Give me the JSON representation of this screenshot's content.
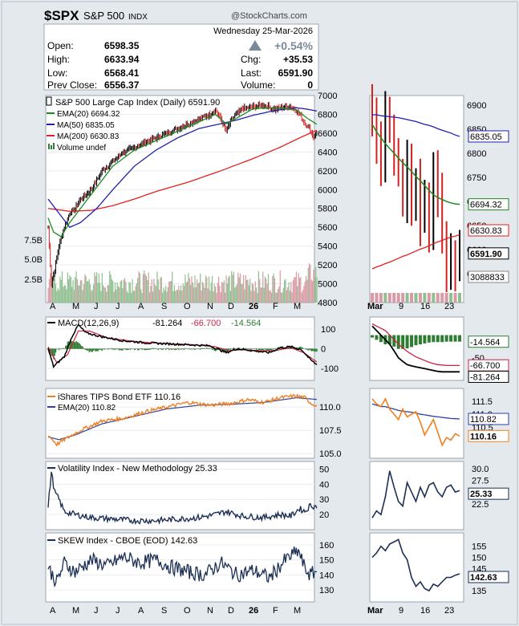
{
  "header": {
    "ticker": "$SPX",
    "name": "S&P 500",
    "exchange": "INDX",
    "source": "@StockCharts.com"
  },
  "quote": {
    "date": "Wednesday  25-Mar-2026",
    "open_label": "Open:",
    "open": "6598.35",
    "high_label": "High:",
    "high": "6633.94",
    "low_label": "Low:",
    "low": "6568.41",
    "prev_label": "Prev Close:",
    "prev": "6556.37",
    "pct": "+0.54%",
    "chg_label": "Chg:",
    "chg": "+35.53",
    "last_label": "Last:",
    "last": "6591.90",
    "vol_label": "Volume:",
    "vol": "0"
  },
  "colors": {
    "background": "#e4e9ee",
    "panel": "#ffffff",
    "up": "#000000",
    "down": "#d42020",
    "ema20": "#1e8c1e",
    "ma50": "#2020b0",
    "ma200": "#e02020",
    "volume_up": "#8fbf8f",
    "volume_down": "#d99aa5",
    "macd": "#000000",
    "signal": "#cc2244",
    "hist": "#2e7d32",
    "tip": "#f07f1e",
    "tip_ema": "#3040a0",
    "vix": "#1c2f55",
    "skew": "#1c2f55"
  },
  "x_labels_main": [
    "A",
    "M",
    "J",
    "J",
    "A",
    "S",
    "O",
    "N",
    "D",
    "26",
    "F",
    "M"
  ],
  "x_labels_zoom": [
    "Mar",
    "9",
    "16",
    "23"
  ],
  "price_panel": {
    "legend": {
      "title": "S&P 500 Large Cap Index (Daily) 6591.90",
      "ema": "EMA(20) 6694.32",
      "ma50": "MA(50) 6835.05",
      "ma200": "MA(200) 6630.83",
      "volume": "Volume undef"
    },
    "y_ticks": [
      "7000",
      "6800",
      "6600",
      "6400",
      "6200",
      "6000",
      "5800",
      "5600",
      "5400",
      "5200",
      "5000",
      "4800"
    ],
    "vol_ticks": [
      "7.5B",
      "5.0B",
      "2.5B"
    ],
    "zoom_ticks": [
      "6900",
      "6850",
      "6800",
      "6750",
      "6700",
      "6650",
      "6600",
      "6550"
    ],
    "zoom_labels": {
      "ma50": "6835.05",
      "ema": "6694.32",
      "ma200": "6630.83",
      "last": "6591.90",
      "volume": "3088833"
    }
  },
  "macd_panel": {
    "legend_name": "MACD(12,26,9)",
    "macd": "-81.264",
    "signal": "-66.700",
    "hist": "-14.564",
    "y_ticks": [
      "100",
      "0",
      "-100"
    ],
    "zoom_ticks": [
      "-50"
    ]
  },
  "tip_panel": {
    "legend": "iShares TIPS Bond ETF 110.16",
    "ema": "EMA(20) 110.82",
    "y_ticks": [
      "110.0",
      "107.5",
      "105.0"
    ],
    "zoom_ticks": [
      "111.5",
      "111.0",
      "110.5"
    ],
    "zoom_labels": {
      "ema": "110.82",
      "last": "110.16"
    }
  },
  "vix_panel": {
    "legend": "Volatility Index - New Methodology 25.33",
    "y_ticks": [
      "50",
      "40",
      "30",
      "20"
    ],
    "zoom_ticks": [
      "30.0",
      "27.5",
      "22.5"
    ],
    "zoom_last": "25.33"
  },
  "skew_panel": {
    "legend": "SKEW Index - CBOE (EOD) 142.63",
    "y_ticks": [
      "160",
      "150",
      "140",
      "130"
    ],
    "zoom_ticks": [
      "155",
      "150",
      "145",
      "135"
    ],
    "zoom_last": "142.63"
  },
  "chart_data": {
    "type": "line",
    "title": "$SPX S&P 500 INDX",
    "x_start": "2025-04-01",
    "x_end": "2026-03-25",
    "price": {
      "ylim": [
        4800,
        7000
      ],
      "close_anchors": [
        [
          0,
          5600
        ],
        [
          3,
          5000
        ],
        [
          6,
          5150
        ],
        [
          10,
          5400
        ],
        [
          15,
          5600
        ],
        [
          20,
          5750
        ],
        [
          25,
          5800
        ],
        [
          30,
          5900
        ],
        [
          40,
          6000
        ],
        [
          50,
          6200
        ],
        [
          60,
          6300
        ],
        [
          70,
          6400
        ],
        [
          80,
          6450
        ],
        [
          90,
          6500
        ],
        [
          100,
          6550
        ],
        [
          110,
          6600
        ],
        [
          120,
          6650
        ],
        [
          130,
          6700
        ],
        [
          140,
          6750
        ],
        [
          150,
          6800
        ],
        [
          155,
          6850
        ],
        [
          160,
          6750
        ],
        [
          165,
          6620
        ],
        [
          170,
          6750
        ],
        [
          175,
          6800
        ],
        [
          180,
          6860
        ],
        [
          190,
          6880
        ],
        [
          200,
          6900
        ],
        [
          210,
          6850
        ],
        [
          215,
          6870
        ],
        [
          225,
          6880
        ],
        [
          230,
          6840
        ],
        [
          234,
          6780
        ],
        [
          238,
          6700
        ],
        [
          242,
          6660
        ],
        [
          246,
          6560
        ],
        [
          249,
          6592
        ]
      ],
      "ema20_anchors": [
        [
          0,
          5700
        ],
        [
          5,
          5550
        ],
        [
          12,
          5500
        ],
        [
          20,
          5650
        ],
        [
          40,
          5950
        ],
        [
          60,
          6250
        ],
        [
          80,
          6420
        ],
        [
          100,
          6520
        ],
        [
          120,
          6620
        ],
        [
          140,
          6720
        ],
        [
          155,
          6800
        ],
        [
          165,
          6700
        ],
        [
          175,
          6760
        ],
        [
          190,
          6860
        ],
        [
          210,
          6870
        ],
        [
          230,
          6850
        ],
        [
          240,
          6760
        ],
        [
          249,
          6694
        ]
      ],
      "ma50_anchors": [
        [
          0,
          5900
        ],
        [
          10,
          5750
        ],
        [
          20,
          5600
        ],
        [
          30,
          5650
        ],
        [
          45,
          5800
        ],
        [
          60,
          6000
        ],
        [
          80,
          6250
        ],
        [
          100,
          6420
        ],
        [
          120,
          6550
        ],
        [
          140,
          6650
        ],
        [
          160,
          6700
        ],
        [
          175,
          6740
        ],
        [
          190,
          6790
        ],
        [
          210,
          6840
        ],
        [
          230,
          6870
        ],
        [
          240,
          6855
        ],
        [
          249,
          6835
        ]
      ],
      "ma200_anchors": [
        [
          0,
          5800
        ],
        [
          20,
          5770
        ],
        [
          40,
          5780
        ],
        [
          60,
          5830
        ],
        [
          80,
          5900
        ],
        [
          100,
          5980
        ],
        [
          130,
          6080
        ],
        [
          160,
          6200
        ],
        [
          190,
          6330
        ],
        [
          215,
          6450
        ],
        [
          235,
          6560
        ],
        [
          249,
          6631
        ]
      ],
      "volume_base_billions": 2.5
    },
    "zoom": {
      "closes": [
        6870,
        6820,
        6780,
        6890,
        6850,
        6780,
        6760,
        6700,
        6780,
        6690,
        6740,
        6660,
        6700,
        6630,
        6760,
        6720,
        6620,
        6560,
        6580,
        6560,
        6592
      ],
      "ema20": [
        6860,
        6845,
        6832,
        6820,
        6810,
        6800,
        6790,
        6780,
        6772,
        6762,
        6752,
        6743,
        6733,
        6723,
        6714,
        6708,
        6704,
        6700,
        6697,
        6695,
        6694
      ],
      "ma50": [
        6880,
        6880,
        6878,
        6877,
        6876,
        6875,
        6874,
        6872,
        6870,
        6868,
        6866,
        6863,
        6860,
        6858,
        6855,
        6851,
        6848,
        6845,
        6842,
        6838,
        6835
      ],
      "ma200": [
        6560,
        6564,
        6567,
        6571,
        6574,
        6578,
        6582,
        6586,
        6589,
        6593,
        6597,
        6601,
        6604,
        6608,
        6612,
        6616,
        6619,
        6623,
        6626,
        6628,
        6631
      ]
    },
    "macd": {
      "ylim": [
        -160,
        160
      ],
      "macd_anchors": [
        [
          0,
          0
        ],
        [
          5,
          -90
        ],
        [
          15,
          -40
        ],
        [
          22,
          60
        ],
        [
          28,
          120
        ],
        [
          35,
          80
        ],
        [
          50,
          60
        ],
        [
          70,
          40
        ],
        [
          90,
          30
        ],
        [
          110,
          25
        ],
        [
          130,
          20
        ],
        [
          150,
          15
        ],
        [
          165,
          -20
        ],
        [
          175,
          0
        ],
        [
          190,
          -10
        ],
        [
          205,
          -20
        ],
        [
          215,
          5
        ],
        [
          225,
          10
        ],
        [
          235,
          -5
        ],
        [
          243,
          -55
        ],
        [
          249,
          -81
        ]
      ],
      "signal_anchors": [
        [
          0,
          10
        ],
        [
          8,
          -70
        ],
        [
          18,
          -30
        ],
        [
          28,
          90
        ],
        [
          38,
          90
        ],
        [
          55,
          55
        ],
        [
          75,
          40
        ],
        [
          95,
          30
        ],
        [
          115,
          25
        ],
        [
          135,
          20
        ],
        [
          155,
          10
        ],
        [
          168,
          -10
        ],
        [
          180,
          -5
        ],
        [
          195,
          -10
        ],
        [
          210,
          -10
        ],
        [
          225,
          5
        ],
        [
          237,
          -20
        ],
        [
          249,
          -67
        ]
      ],
      "zoom_macd": [
        20,
        10,
        0,
        -10,
        -20,
        -35,
        -50,
        -58,
        -65,
        -68,
        -70,
        -72,
        -74,
        -76,
        -78,
        -80,
        -81,
        -81,
        -81,
        -81,
        -81
      ],
      "zoom_signal": [
        25,
        20,
        15,
        10,
        0,
        -10,
        -20,
        -28,
        -36,
        -42,
        -48,
        -52,
        -56,
        -60,
        -63,
        -65,
        -66,
        -67,
        -67,
        -67,
        -67
      ]
    },
    "tip": {
      "ylim": [
        104.5,
        112
      ],
      "close_anchors": [
        [
          0,
          107
        ],
        [
          8,
          106
        ],
        [
          15,
          106.5
        ],
        [
          30,
          107.5
        ],
        [
          50,
          108.5
        ],
        [
          70,
          108.8
        ],
        [
          90,
          109.5
        ],
        [
          110,
          110
        ],
        [
          130,
          110.5
        ],
        [
          150,
          110.2
        ],
        [
          170,
          110.4
        ],
        [
          185,
          110.8
        ],
        [
          200,
          110.5
        ],
        [
          215,
          111
        ],
        [
          230,
          111.2
        ],
        [
          238,
          111
        ],
        [
          245,
          110.3
        ],
        [
          249,
          110.16
        ]
      ],
      "ema_anchors": [
        [
          0,
          106.8
        ],
        [
          10,
          106.5
        ],
        [
          25,
          107
        ],
        [
          50,
          108.2
        ],
        [
          80,
          109
        ],
        [
          110,
          109.8
        ],
        [
          140,
          110.2
        ],
        [
          170,
          110.3
        ],
        [
          200,
          110.5
        ],
        [
          230,
          111
        ],
        [
          249,
          110.82
        ]
      ],
      "zoom_close": [
        111.6,
        111.4,
        111.3,
        111.6,
        111.2,
        111.0,
        110.8,
        111.2,
        110.9,
        111.0,
        111.1,
        110.7,
        110.2,
        110.5,
        110.8,
        110.3,
        109.8,
        110.1,
        110.0,
        110.25,
        110.16
      ],
      "zoom_ema": [
        111.4,
        111.35,
        111.3,
        111.3,
        111.25,
        111.2,
        111.15,
        111.12,
        111.1,
        111.08,
        111.05,
        111.0,
        110.98,
        110.95,
        110.92,
        110.9,
        110.88,
        110.86,
        110.84,
        110.83,
        110.82
      ]
    },
    "vix": {
      "ylim": [
        10,
        55
      ],
      "anchors": [
        [
          0,
          25
        ],
        [
          3,
          48
        ],
        [
          6,
          35
        ],
        [
          10,
          30
        ],
        [
          15,
          22
        ],
        [
          25,
          20
        ],
        [
          40,
          18
        ],
        [
          60,
          17
        ],
        [
          80,
          16
        ],
        [
          100,
          16
        ],
        [
          120,
          17
        ],
        [
          140,
          18
        ],
        [
          155,
          20
        ],
        [
          165,
          22
        ],
        [
          180,
          19
        ],
        [
          200,
          18
        ],
        [
          215,
          20
        ],
        [
          225,
          19
        ],
        [
          233,
          24
        ],
        [
          238,
          22
        ],
        [
          243,
          26
        ],
        [
          249,
          25.33
        ]
      ],
      "zoom": [
        19.5,
        21,
        20.2,
        24,
        29.5,
        26,
        23,
        22,
        27,
        25,
        23,
        26,
        24,
        26.5,
        27,
        25,
        24,
        26,
        26.5,
        25,
        25.33
      ]
    },
    "skew": {
      "ylim": [
        122,
        168
      ],
      "anchors": [
        [
          0,
          145
        ],
        [
          8,
          135
        ],
        [
          15,
          148
        ],
        [
          25,
          142
        ],
        [
          40,
          150
        ],
        [
          55,
          146
        ],
        [
          70,
          152
        ],
        [
          85,
          148
        ],
        [
          100,
          150
        ],
        [
          115,
          145
        ],
        [
          130,
          142
        ],
        [
          145,
          140
        ],
        [
          160,
          148
        ],
        [
          175,
          140
        ],
        [
          190,
          143
        ],
        [
          205,
          138
        ],
        [
          220,
          150
        ],
        [
          232,
          156
        ],
        [
          238,
          144
        ],
        [
          243,
          140
        ],
        [
          249,
          142.63
        ]
      ],
      "zoom": [
        150,
        152,
        155,
        153,
        156,
        157,
        158,
        152,
        149,
        141,
        137,
        139,
        136,
        135,
        138,
        137,
        139,
        141,
        141,
        142,
        142.63
      ]
    }
  }
}
